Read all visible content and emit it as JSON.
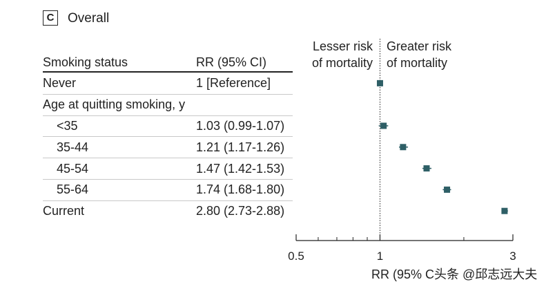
{
  "panel": {
    "letter": "C",
    "title": "Overall"
  },
  "table": {
    "col1_header": "Smoking status",
    "col2_header": "RR (95% CI)",
    "rows": [
      {
        "label": "Never",
        "indent": false,
        "value": "1 [Reference]"
      },
      {
        "label": "Age at quitting smoking, y",
        "indent": false,
        "value": ""
      },
      {
        "label": "<35",
        "indent": true,
        "value": "1.03 (0.99-1.07)"
      },
      {
        "label": "35-44",
        "indent": true,
        "value": "1.21 (1.17-1.26)"
      },
      {
        "label": "45-54",
        "indent": true,
        "value": "1.47 (1.42-1.53)"
      },
      {
        "label": "55-64",
        "indent": true,
        "value": "1.74 (1.68-1.80)"
      },
      {
        "label": "Current",
        "indent": false,
        "value": "2.80 (2.73-2.88)"
      }
    ]
  },
  "annotations": {
    "lesser_line1": "Lesser risk",
    "lesser_line2": "of mortality",
    "greater_line1": "Greater risk",
    "greater_line2": "of mortality"
  },
  "credit": "RR (95% C头条 @邱志远大夫",
  "colors": {
    "marker": "#2e5f66",
    "text": "#222222",
    "rule": "#c8c8c8"
  },
  "chart_data": {
    "type": "scatter",
    "title": "Overall",
    "xlabel": "RR (95% CI)",
    "x_scale": "log",
    "xlim": [
      0.5,
      3
    ],
    "x_ticks": [
      0.5,
      1,
      3
    ],
    "reference_line": 1,
    "categories": [
      "Never",
      "<35",
      "35-44",
      "45-54",
      "55-64",
      "Current"
    ],
    "points": [
      {
        "category": "Never",
        "rr": 1,
        "lower": 1,
        "upper": 1
      },
      {
        "category": "<35",
        "rr": 1.03,
        "lower": 0.99,
        "upper": 1.07
      },
      {
        "category": "35-44",
        "rr": 1.21,
        "lower": 1.17,
        "upper": 1.26
      },
      {
        "category": "45-54",
        "rr": 1.47,
        "lower": 1.42,
        "upper": 1.53
      },
      {
        "category": "55-64",
        "rr": 1.74,
        "lower": 1.68,
        "upper": 1.8
      },
      {
        "category": "Current",
        "rr": 2.8,
        "lower": 2.73,
        "upper": 2.88
      }
    ]
  }
}
